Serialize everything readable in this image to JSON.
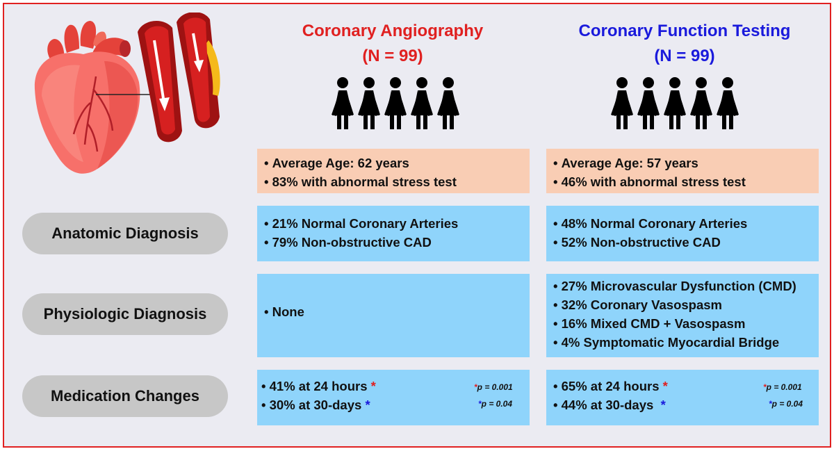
{
  "colors": {
    "frame": "#e02020",
    "angiography_title": "#e02020",
    "function_title": "#1a1adc",
    "peach_box": "#f9cdb4",
    "blue_box": "#8fd4fb",
    "row_label_bg": "#c7c7c7"
  },
  "icons": [
    "heart-illustration",
    "artery-normal-icon",
    "artery-plaque-icon",
    "woman-figure-icon"
  ],
  "columns": [
    {
      "title": "Coronary Angiography",
      "n": "(N = 99)",
      "demographics": [
        "Average Age: 62 years",
        "83% with abnormal stress test"
      ],
      "anatomic": [
        "21% Normal Coronary Arteries",
        "79% Non-obstructive CAD"
      ],
      "physiologic": [
        "None"
      ],
      "medication": [
        {
          "text": "41% at 24 hours",
          "star": "*"
        },
        {
          "text": "30% at 30-days",
          "star": "*"
        }
      ],
      "pvalues": [
        {
          "star": "*",
          "text": "p = 0.001"
        },
        {
          "star": "*",
          "text": "p = 0.04"
        }
      ]
    },
    {
      "title": "Coronary Function Testing",
      "n": "(N = 99)",
      "demographics": [
        "Average Age: 57 years",
        "46% with abnormal stress test"
      ],
      "anatomic": [
        "48% Normal Coronary Arteries",
        "52% Non-obstructive CAD"
      ],
      "physiologic": [
        "27% Microvascular Dysfunction (CMD)",
        "32% Coronary Vasospasm",
        "16% Mixed CMD + Vasospasm",
        "4% Symptomatic Myocardial Bridge"
      ],
      "medication": [
        {
          "text": "65% at 24 hours",
          "star": "*"
        },
        {
          "text": "44% at 30-days",
          "star": "*"
        }
      ],
      "pvalues": [
        {
          "star": "*",
          "text": "p = 0.001"
        },
        {
          "star": "*",
          "text": "p = 0.04"
        }
      ]
    }
  ],
  "row_labels": {
    "anatomic": "Anatomic Diagnosis",
    "physiologic": "Physiologic Diagnosis",
    "medication": "Medication Changes"
  }
}
